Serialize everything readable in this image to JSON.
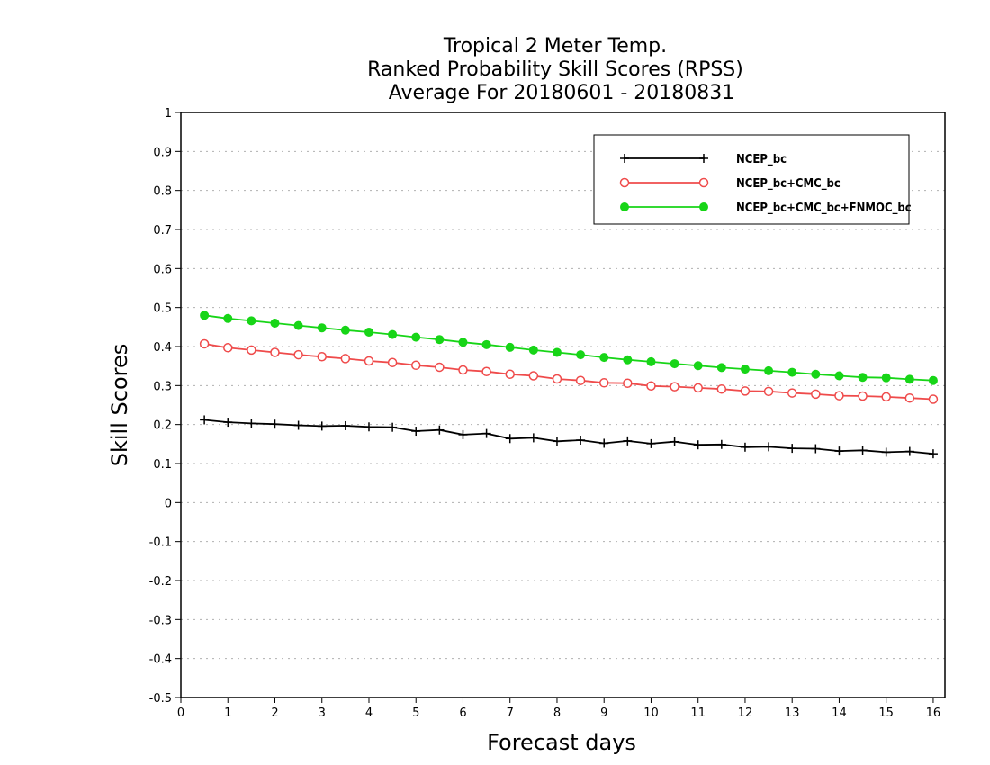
{
  "chart_data": {
    "type": "line",
    "title_lines": [
      "Tropical 2 Meter Temp.",
      "Ranked Probability Skill Scores (RPSS)",
      "Average For 20180601 - 20180831"
    ],
    "xlabel": "Forecast days",
    "ylabel": "Skill Scores",
    "xlim": [
      0,
      16.25
    ],
    "ylim": [
      -0.5,
      1
    ],
    "xticks": [
      0,
      1,
      2,
      3,
      4,
      5,
      6,
      7,
      8,
      9,
      10,
      11,
      12,
      13,
      14,
      15,
      16
    ],
    "yticks": [
      -0.5,
      -0.4,
      -0.3,
      -0.2,
      -0.1,
      0,
      0.1,
      0.2,
      0.3,
      0.4,
      0.5,
      0.6,
      0.7,
      0.8,
      0.9,
      1
    ],
    "ytick_labels": [
      "-0.5",
      "-0.4",
      "-0.3",
      "-0.2",
      "-0.1",
      "0",
      "0.1",
      "0.2",
      "0.3",
      "0.4",
      "0.5",
      "0.6",
      "0.7",
      "0.8",
      "0.9",
      "1"
    ],
    "grid": true,
    "legend_position": "top-right",
    "x": [
      0.5,
      1.0,
      1.5,
      2.0,
      2.5,
      3.0,
      3.5,
      4.0,
      4.5,
      5.0,
      5.5,
      6.0,
      6.5,
      7.0,
      7.5,
      8.0,
      8.5,
      9.0,
      9.5,
      10.0,
      10.5,
      11.0,
      11.5,
      12.0,
      12.5,
      13.0,
      13.5,
      14.0,
      14.5,
      15.0,
      15.5,
      16.0
    ],
    "series": [
      {
        "name": "NCEP_bc",
        "color": "#000000",
        "marker": "plus",
        "values": [
          0.212,
          0.206,
          0.203,
          0.201,
          0.198,
          0.196,
          0.197,
          0.194,
          0.193,
          0.183,
          0.186,
          0.174,
          0.177,
          0.164,
          0.166,
          0.157,
          0.16,
          0.152,
          0.158,
          0.151,
          0.156,
          0.148,
          0.149,
          0.142,
          0.143,
          0.139,
          0.138,
          0.132,
          0.134,
          0.129,
          0.131,
          0.125
        ]
      },
      {
        "name": "NCEP_bc+CMC_bc",
        "color": "#ef4b4b",
        "marker": "open-circle",
        "values": [
          0.407,
          0.397,
          0.391,
          0.385,
          0.379,
          0.374,
          0.369,
          0.363,
          0.359,
          0.352,
          0.347,
          0.34,
          0.336,
          0.329,
          0.325,
          0.317,
          0.313,
          0.307,
          0.306,
          0.299,
          0.297,
          0.294,
          0.291,
          0.286,
          0.285,
          0.281,
          0.278,
          0.274,
          0.273,
          0.271,
          0.268,
          0.265
        ]
      },
      {
        "name": "NCEP_bc+CMC_bc+FNMOC_bc",
        "color": "#17d517",
        "marker": "filled-circle",
        "values": [
          0.48,
          0.472,
          0.466,
          0.46,
          0.454,
          0.448,
          0.442,
          0.437,
          0.431,
          0.424,
          0.418,
          0.411,
          0.405,
          0.398,
          0.391,
          0.385,
          0.379,
          0.372,
          0.366,
          0.361,
          0.356,
          0.351,
          0.346,
          0.342,
          0.338,
          0.334,
          0.329,
          0.325,
          0.321,
          0.32,
          0.316,
          0.313
        ]
      }
    ]
  }
}
